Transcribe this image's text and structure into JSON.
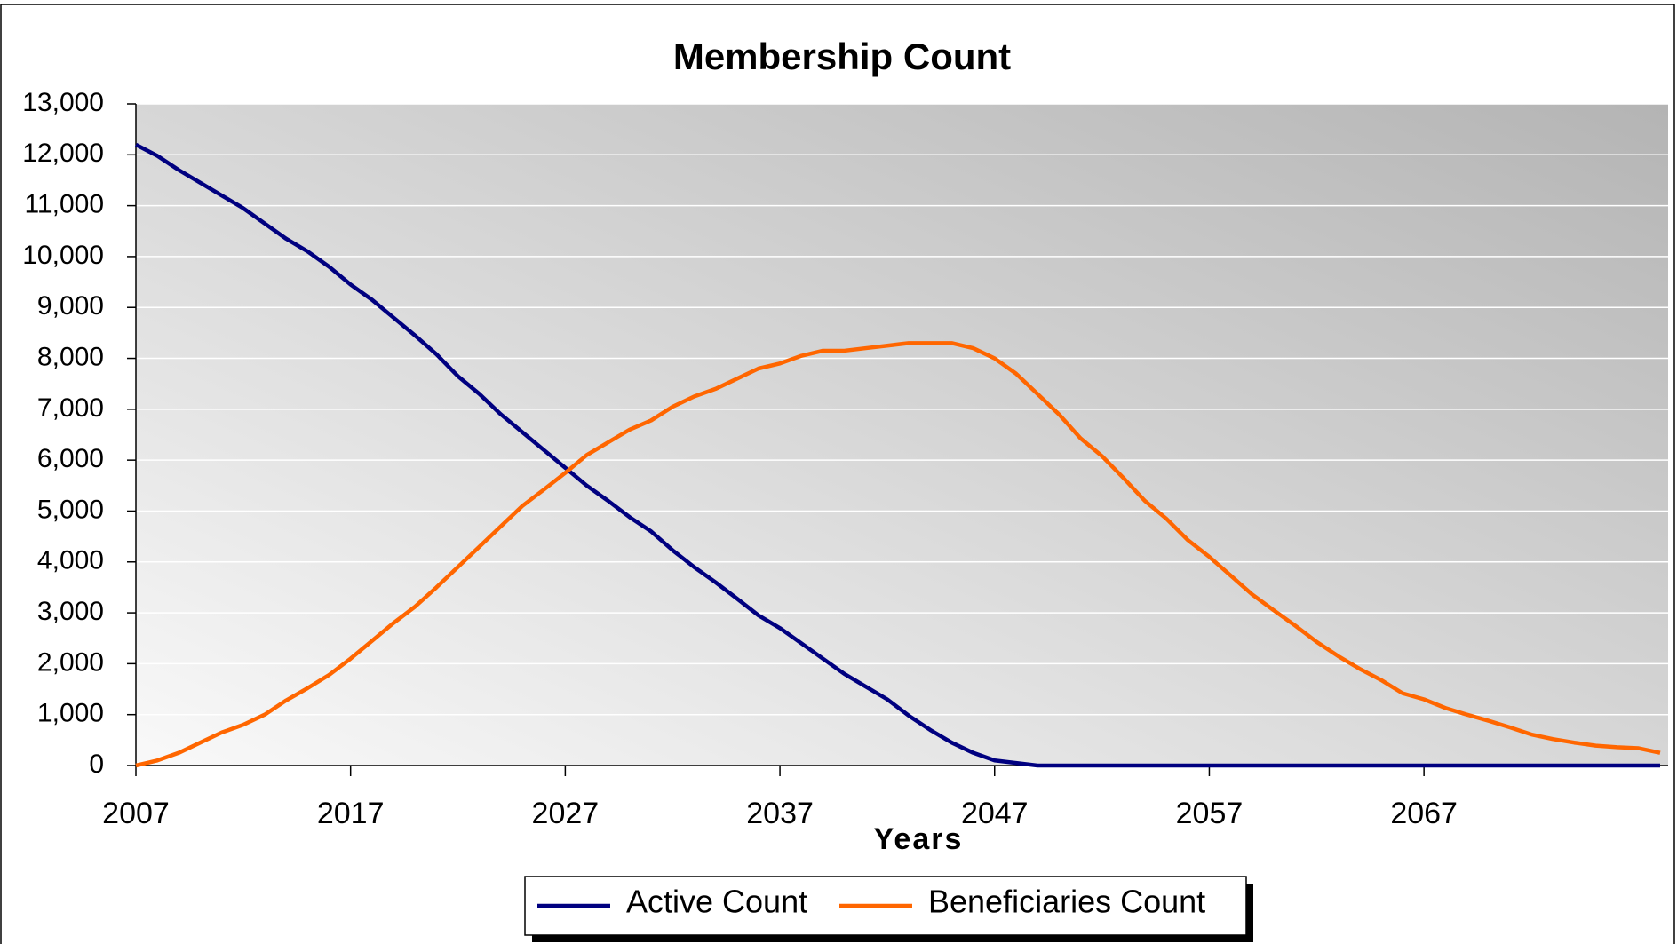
{
  "chart_data": {
    "type": "line",
    "title": "Membership Count",
    "x_label": "Years",
    "x": [
      2007,
      2008,
      2009,
      2010,
      2011,
      2012,
      2013,
      2014,
      2015,
      2016,
      2017,
      2018,
      2019,
      2020,
      2021,
      2022,
      2023,
      2024,
      2025,
      2026,
      2027,
      2028,
      2029,
      2030,
      2031,
      2032,
      2033,
      2034,
      2035,
      2036,
      2037,
      2038,
      2039,
      2040,
      2041,
      2042,
      2043,
      2044,
      2045,
      2046,
      2047,
      2048,
      2049,
      2050,
      2051,
      2052,
      2053,
      2054,
      2055,
      2056,
      2057,
      2058,
      2059,
      2060,
      2061,
      2062,
      2063,
      2064,
      2065,
      2066,
      2067,
      2068,
      2069,
      2070,
      2071,
      2072,
      2073,
      2074,
      2075,
      2076,
      2077,
      2078
    ],
    "series": [
      {
        "name": "Active Count",
        "color": "#000080",
        "values": [
          12200,
          11980,
          11700,
          11450,
          11200,
          10950,
          10650,
          10350,
          10100,
          9800,
          9450,
          9150,
          8800,
          8450,
          8080,
          7650,
          7300,
          6900,
          6550,
          6200,
          5850,
          5500,
          5200,
          4880,
          4600,
          4230,
          3900,
          3600,
          3280,
          2950,
          2700,
          2400,
          2100,
          1800,
          1550,
          1300,
          980,
          700,
          450,
          250,
          100,
          50,
          0,
          0,
          0,
          0,
          0,
          0,
          0,
          0,
          0,
          0,
          0,
          0,
          0,
          0,
          0,
          0,
          0,
          0,
          0,
          0,
          0,
          0,
          0,
          0,
          0,
          0,
          0,
          0,
          0,
          0
        ]
      },
      {
        "name": "Beneficiaries Count",
        "color": "#ff6600",
        "values": [
          0,
          100,
          250,
          450,
          650,
          800,
          1000,
          1280,
          1520,
          1780,
          2100,
          2450,
          2800,
          3120,
          3500,
          3900,
          4300,
          4700,
          5100,
          5420,
          5750,
          6100,
          6350,
          6600,
          6780,
          7050,
          7250,
          7400,
          7600,
          7800,
          7900,
          8050,
          8150,
          8150,
          8200,
          8250,
          8300,
          8300,
          8300,
          8200,
          8000,
          7700,
          7300,
          6900,
          6430,
          6080,
          5650,
          5200,
          4850,
          4430,
          4100,
          3730,
          3360,
          3050,
          2750,
          2430,
          2150,
          1900,
          1680,
          1420,
          1300,
          1130,
          1000,
          880,
          750,
          610,
          520,
          450,
          390,
          360,
          340,
          250
        ]
      }
    ],
    "xlim": [
      2007,
      2078
    ],
    "xticks": [
      2007,
      2017,
      2027,
      2037,
      2047,
      2057,
      2067
    ],
    "ylim": [
      0,
      13000
    ],
    "yticks": [
      0,
      {
        "value": 1000,
        "label": "1,000"
      },
      {
        "value": 2000,
        "label": "2,000"
      },
      {
        "value": 3000,
        "label": "3,000"
      },
      {
        "value": 4000,
        "label": "4,000"
      },
      {
        "value": 5000,
        "label": "5,000"
      },
      {
        "value": 6000,
        "label": "6,000"
      },
      {
        "value": 7000,
        "label": "7,000"
      },
      {
        "value": 8000,
        "label": "8,000"
      },
      {
        "value": 9000,
        "label": "9,000"
      },
      {
        "value": 10000,
        "label": "10,000"
      },
      {
        "value": 11000,
        "label": "11,000"
      },
      {
        "value": 12000,
        "label": "12,000"
      },
      {
        "value": 13000,
        "label": "13,000"
      }
    ],
    "grid": true,
    "legend": "bottom"
  }
}
